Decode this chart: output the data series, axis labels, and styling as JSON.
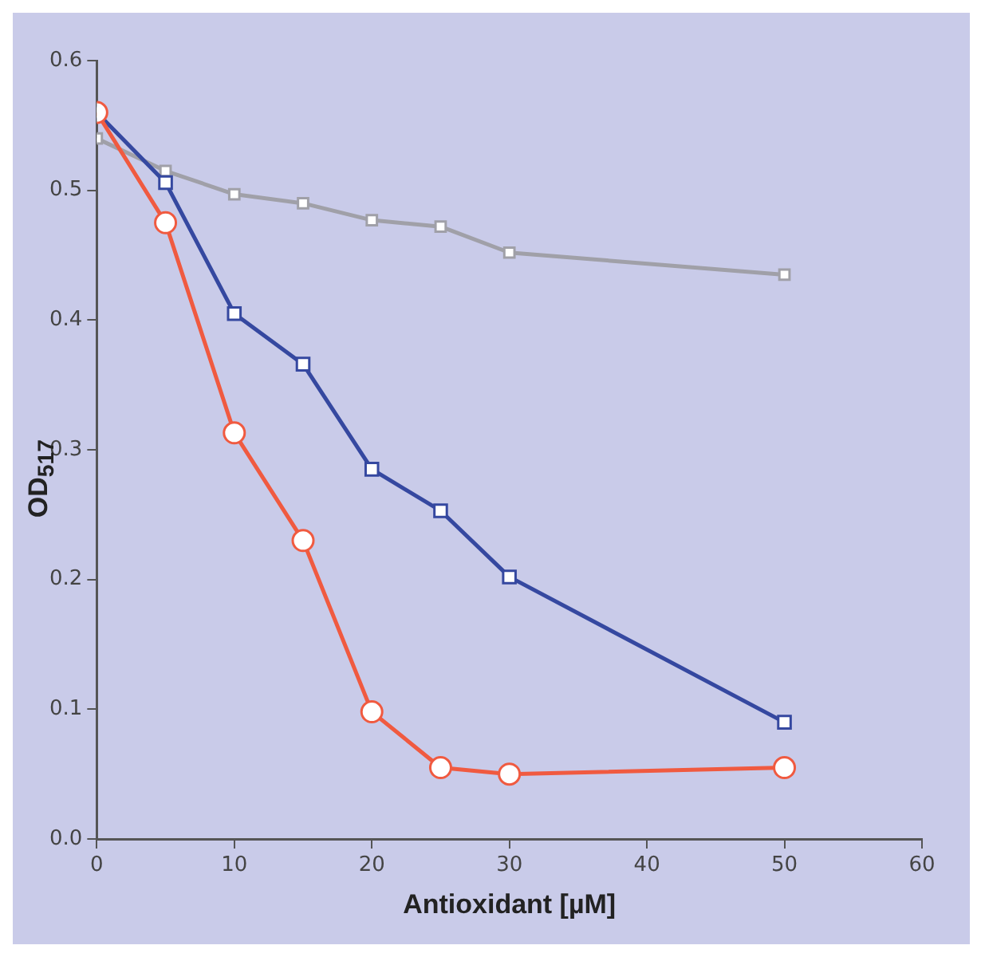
{
  "chart_data": {
    "type": "line",
    "xlabel": "Antioxidant [µM]",
    "ylabel": "OD$_{517}$",
    "x": [
      0,
      5,
      10,
      15,
      20,
      25,
      30,
      50
    ],
    "xlim": [
      0,
      60
    ],
    "xticks": [
      0,
      10,
      20,
      30,
      40,
      50,
      60
    ],
    "ylim": [
      0,
      0.6
    ],
    "yticks": [
      {
        "value": 0,
        "label": "0.0"
      },
      0.1,
      0.2,
      0.3,
      0.4,
      0.5,
      0.6
    ],
    "grid": false,
    "legend": false,
    "line_style": "solid",
    "series": [
      {
        "color": "#a0a0a8",
        "marker": "square",
        "values": [
          0.54,
          0.515,
          0.497,
          0.49,
          0.477,
          0.472,
          0.452,
          0.435
        ]
      },
      {
        "color": "#3548a0",
        "marker": "square",
        "values": [
          0.56,
          0.506,
          0.405,
          0.366,
          0.285,
          0.253,
          0.202,
          0.09
        ]
      },
      {
        "color": "#f05a40",
        "marker": "circle",
        "values": [
          0.56,
          0.475,
          0.313,
          0.23,
          0.098,
          0.055,
          0.05,
          0.055
        ]
      }
    ]
  }
}
